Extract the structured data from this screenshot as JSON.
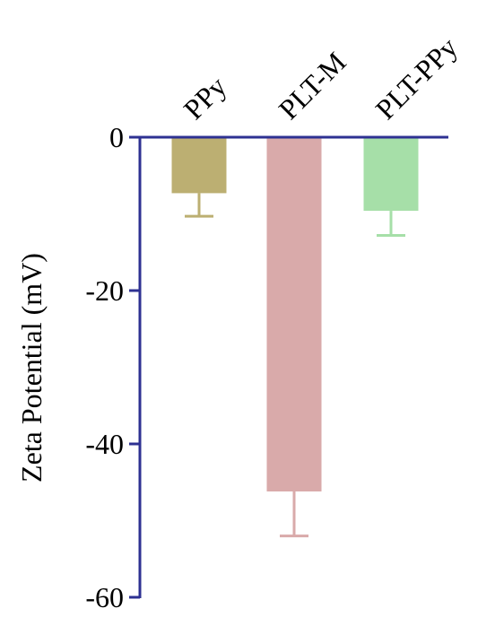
{
  "chart_data": {
    "type": "bar",
    "categories": [
      "PPy",
      "PLT-M",
      "PLT-PPy"
    ],
    "values": [
      -7.3,
      -46.2,
      -9.6
    ],
    "errors": [
      3.0,
      5.8,
      3.2
    ],
    "colors": [
      "#bcaf72",
      "#d9aaaa",
      "#a6dfa8"
    ],
    "axis_color": "#2e3192",
    "title": "",
    "xlabel": "",
    "ylabel": "Zeta Potential (mV)",
    "ylim": [
      -60,
      0
    ],
    "yticks": [
      0,
      -20,
      -40,
      -60
    ],
    "ytick_labels": [
      "0",
      "-20",
      "-40",
      "-60"
    ],
    "grid": false,
    "legend": "none"
  }
}
